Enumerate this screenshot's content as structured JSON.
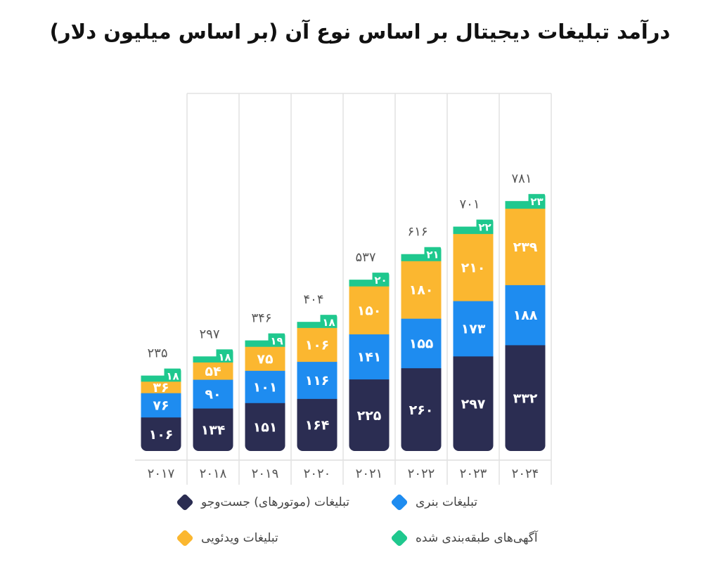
{
  "title": "درآمد تبلیغات دیجیتال بر اساس نوع آن (بر اساس میلیون دلار)",
  "chart_data": {
    "type": "bar",
    "stacked": true,
    "title": "درآمد تبلیغات دیجیتال بر اساس نوع آن (بر اساس میلیون دلار)",
    "categories": [
      "۲۰۱۷",
      "۲۰۱۸",
      "۲۰۱۹",
      "۲۰۲۰",
      "۲۰۲۱",
      "۲۰۲۲",
      "۲۰۲۳",
      "۲۰۲۴"
    ],
    "series": [
      {
        "name": "تبلیغات (موتورهای) جست‌وجو",
        "color": "#2b2d52",
        "values": [
          106,
          134,
          151,
          164,
          225,
          260,
          297,
          332
        ]
      },
      {
        "name": "تبلیغات بنری",
        "color": "#1e8cf0",
        "values": [
          76,
          90,
          101,
          116,
          141,
          155,
          173,
          188
        ]
      },
      {
        "name": "تبلیغات ویدئویی",
        "color": "#fbb730",
        "values": [
          36,
          54,
          75,
          106,
          150,
          180,
          210,
          239
        ]
      },
      {
        "name": "آگهی‌های طبقه‌بندی شده",
        "color": "#1fc88e",
        "values": [
          18,
          18,
          19,
          18,
          20,
          21,
          22,
          23
        ]
      }
    ],
    "totals": [
      235,
      297,
      346,
      404,
      537,
      616,
      701,
      781
    ],
    "ylim": [
      0,
      800
    ],
    "grid": "vertical separators",
    "legend": "bottom"
  }
}
